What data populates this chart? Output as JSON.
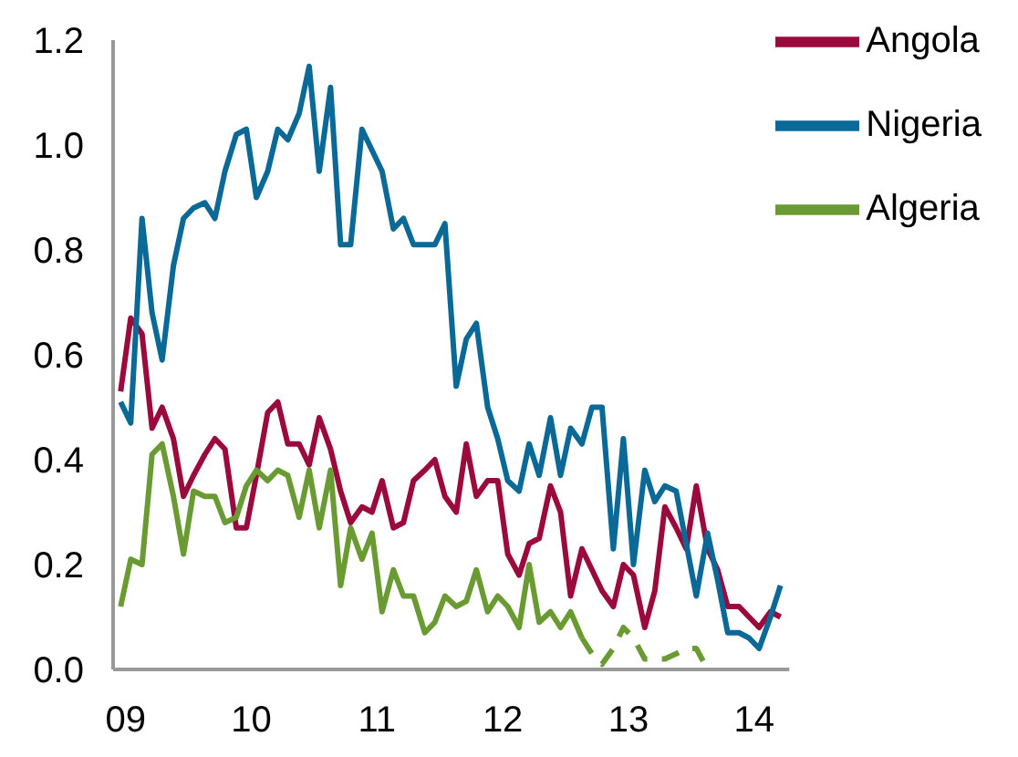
{
  "chart_data": {
    "type": "line",
    "x": [
      2008.96,
      2009.04,
      2009.13,
      2009.21,
      2009.29,
      2009.38,
      2009.46,
      2009.54,
      2009.63,
      2009.71,
      2009.79,
      2009.88,
      2009.96,
      2010.04,
      2010.13,
      2010.21,
      2010.29,
      2010.38,
      2010.46,
      2010.54,
      2010.63,
      2010.71,
      2010.79,
      2010.88,
      2010.96,
      2011.04,
      2011.13,
      2011.21,
      2011.29,
      2011.38,
      2011.46,
      2011.54,
      2011.63,
      2011.71,
      2011.79,
      2011.88,
      2011.96,
      2012.04,
      2012.13,
      2012.21,
      2012.29,
      2012.38,
      2012.46,
      2012.54,
      2012.63,
      2012.71,
      2012.79,
      2012.88,
      2012.96,
      2013.04,
      2013.13,
      2013.21,
      2013.29,
      2013.38,
      2013.46,
      2013.54,
      2013.63,
      2013.71,
      2013.79,
      2013.88,
      2013.96,
      2014.04,
      2014.13,
      2014.21
    ],
    "series": [
      {
        "name": "Angola",
        "color": "#9b0a3c",
        "values": [
          0.53,
          0.67,
          0.64,
          0.46,
          0.5,
          0.44,
          0.33,
          0.37,
          0.41,
          0.44,
          0.42,
          0.27,
          0.27,
          0.37,
          0.49,
          0.51,
          0.43,
          0.43,
          0.39,
          0.48,
          0.42,
          0.34,
          0.28,
          0.31,
          0.3,
          0.36,
          0.27,
          0.28,
          0.36,
          0.38,
          0.4,
          0.33,
          0.3,
          0.43,
          0.33,
          0.36,
          0.36,
          0.22,
          0.18,
          0.24,
          0.25,
          0.35,
          0.3,
          0.14,
          0.23,
          0.19,
          0.15,
          0.12,
          0.2,
          0.18,
          0.08,
          0.15,
          0.31,
          0.27,
          0.23,
          0.35,
          0.23,
          0.19,
          0.12,
          0.12,
          0.1,
          0.08,
          0.11,
          0.1
        ]
      },
      {
        "name": "Nigeria",
        "color": "#0a6996",
        "values": [
          0.51,
          0.47,
          0.86,
          0.68,
          0.59,
          0.77,
          0.86,
          0.88,
          0.89,
          0.86,
          0.95,
          1.02,
          1.03,
          0.9,
          0.95,
          1.03,
          1.01,
          1.06,
          1.15,
          0.95,
          1.11,
          0.81,
          0.81,
          1.03,
          0.99,
          0.95,
          0.84,
          0.86,
          0.81,
          0.81,
          0.81,
          0.85,
          0.54,
          0.63,
          0.66,
          0.5,
          0.44,
          0.36,
          0.34,
          0.43,
          0.37,
          0.48,
          0.37,
          0.46,
          0.43,
          0.5,
          0.5,
          0.23,
          0.44,
          0.2,
          0.38,
          0.32,
          0.35,
          0.34,
          0.24,
          0.14,
          0.26,
          0.17,
          0.07,
          0.07,
          0.06,
          0.04,
          0.1,
          0.16
        ]
      },
      {
        "name": "Algeria",
        "color": "#6a9a32",
        "values": [
          0.12,
          0.21,
          0.2,
          0.41,
          0.43,
          0.33,
          0.22,
          0.34,
          0.33,
          0.33,
          0.28,
          0.29,
          0.35,
          0.38,
          0.36,
          0.38,
          0.37,
          0.29,
          0.38,
          0.27,
          0.38,
          0.16,
          0.27,
          0.21,
          0.26,
          0.11,
          0.19,
          0.14,
          0.14,
          0.07,
          0.09,
          0.14,
          0.12,
          0.13,
          0.19,
          0.11,
          0.14,
          0.12,
          0.08,
          0.2,
          0.09,
          0.11,
          0.08,
          0.11,
          0.06,
          null,
          null,
          null,
          null,
          null,
          null,
          null,
          null,
          null,
          null,
          null,
          null,
          null,
          null,
          null,
          null,
          null,
          null,
          null
        ]
      },
      {
        "color": "#6a9a32",
        "line_style": "dashed",
        "values": [
          null,
          null,
          null,
          null,
          null,
          null,
          null,
          null,
          null,
          null,
          null,
          null,
          null,
          null,
          null,
          null,
          null,
          null,
          null,
          null,
          null,
          null,
          null,
          null,
          null,
          null,
          null,
          null,
          null,
          null,
          null,
          null,
          null,
          null,
          null,
          null,
          null,
          null,
          null,
          null,
          null,
          null,
          null,
          null,
          0.06,
          0.03,
          0.01,
          0.04,
          0.08,
          0.06,
          0.02,
          0.02,
          0.02,
          0.03,
          0.04,
          0.04,
          0.0,
          null,
          null,
          null,
          null,
          null,
          null,
          null
        ]
      }
    ],
    "xlim": [
      2008.9,
      2014.28
    ],
    "xticks": [
      {
        "value": 2009,
        "label": "09"
      },
      {
        "value": 2010,
        "label": "10"
      },
      {
        "value": 2011,
        "label": "11"
      },
      {
        "value": 2012,
        "label": "12"
      },
      {
        "value": 2013,
        "label": "13"
      },
      {
        "value": 2014,
        "label": "14"
      }
    ],
    "ylim": [
      0,
      1.2
    ],
    "yticks": [
      {
        "value": 0,
        "label": "0.0"
      },
      {
        "value": 0.2,
        "label": "0.2"
      },
      {
        "value": 0.4,
        "label": "0.4"
      },
      {
        "value": 0.6,
        "label": "0.6"
      },
      {
        "value": 0.8,
        "label": "0.8"
      },
      {
        "value": 1.0,
        "label": "1.0"
      },
      {
        "value": 1.2,
        "label": "1.2"
      }
    ],
    "grid": false,
    "legend": "top right",
    "marker": "none",
    "line_style": "solid"
  }
}
